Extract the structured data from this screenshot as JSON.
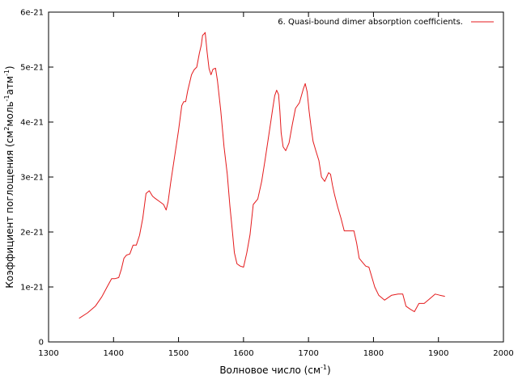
{
  "chart_data": {
    "type": "line",
    "title": "",
    "xlabel": {
      "main": "Волновое число (см",
      "sup": "-1",
      "end": ")"
    },
    "ylabel": {
      "p1": "Коэффициент поглощения (см",
      "s1": "2",
      "p2": "моль",
      "s2": "-1",
      "p3": "атм",
      "s3": "-1",
      "p4": ")"
    },
    "xlim": [
      1300,
      2000
    ],
    "ylim": [
      0,
      6e-21
    ],
    "xticks": [
      1300,
      1400,
      1500,
      1600,
      1700,
      1800,
      1900,
      2000
    ],
    "xtick_labels": [
      "1300",
      "1400",
      "1500",
      "1600",
      "1700",
      "1800",
      "1900",
      "2000"
    ],
    "yticks": [
      0,
      1e-21,
      2e-21,
      3e-21,
      4e-21,
      5e-21,
      6e-21
    ],
    "ytick_labels": [
      "0",
      "1e-21",
      "2e-21",
      "3e-21",
      "4e-21",
      "5e-21",
      "6e-21"
    ],
    "grid": false,
    "legend_position": "top-right",
    "series": [
      {
        "name": "6. Quasi-bound dimer absorption coefficients.",
        "color": "#e41a1c",
        "x": [
          1347,
          1360,
          1372,
          1382,
          1390,
          1397,
          1402,
          1408,
          1412,
          1416,
          1420,
          1425,
          1430,
          1435,
          1440,
          1445,
          1450,
          1455,
          1460,
          1463,
          1470,
          1477,
          1481,
          1484,
          1488,
          1493,
          1500,
          1505,
          1508,
          1511,
          1514,
          1520,
          1524,
          1528,
          1532,
          1535,
          1537,
          1539,
          1541,
          1544,
          1547,
          1550,
          1553,
          1557,
          1560,
          1565,
          1570,
          1575,
          1579,
          1583,
          1586,
          1590,
          1595,
          1600,
          1605,
          1610,
          1615,
          1622,
          1628,
          1633,
          1640,
          1645,
          1648,
          1651,
          1654,
          1656,
          1658,
          1661,
          1665,
          1670,
          1675,
          1680,
          1686,
          1692,
          1695,
          1698,
          1701,
          1704,
          1707,
          1712,
          1716,
          1720,
          1725,
          1728,
          1731,
          1734,
          1737,
          1740,
          1745,
          1750,
          1755,
          1760,
          1765,
          1770,
          1774,
          1778,
          1783,
          1788,
          1793,
          1797,
          1802,
          1808,
          1817,
          1828,
          1838,
          1845,
          1850,
          1856,
          1863,
          1870,
          1878,
          1886,
          1895,
          1902,
          1910
        ],
        "values": [
          4.3e-22,
          5.3e-22,
          6.5e-22,
          8.2e-22,
          1e-21,
          1.15e-21,
          1.15e-21,
          1.17e-21,
          1.32e-21,
          1.52e-21,
          1.58e-21,
          1.6e-21,
          1.76e-21,
          1.76e-21,
          1.94e-21,
          2.25e-21,
          2.7e-21,
          2.75e-21,
          2.65e-21,
          2.62e-21,
          2.56e-21,
          2.5e-21,
          2.4e-21,
          2.55e-21,
          2.9e-21,
          3.3e-21,
          3.85e-21,
          4.3e-21,
          4.37e-21,
          4.37e-21,
          4.56e-21,
          4.86e-21,
          4.95e-21,
          5e-21,
          5.25e-21,
          5.4e-21,
          5.58e-21,
          5.6e-21,
          5.63e-21,
          5.27e-21,
          4.97e-21,
          4.86e-21,
          4.96e-21,
          4.98e-21,
          4.75e-21,
          4.2e-21,
          3.55e-21,
          3.05e-21,
          2.48e-21,
          2e-21,
          1.62e-21,
          1.42e-21,
          1.38e-21,
          1.36e-21,
          1.62e-21,
          1.95e-21,
          2.5e-21,
          2.6e-21,
          2.92e-21,
          3.3e-21,
          3.85e-21,
          4.25e-21,
          4.48e-21,
          4.58e-21,
          4.5e-21,
          4.2e-21,
          3.8e-21,
          3.55e-21,
          3.48e-21,
          3.62e-21,
          3.95e-21,
          4.25e-21,
          4.35e-21,
          4.6e-21,
          4.7e-21,
          4.55e-21,
          4.2e-21,
          3.9e-21,
          3.65e-21,
          3.45e-21,
          3.3e-21,
          3e-21,
          2.92e-21,
          3e-21,
          3.08e-21,
          3.05e-21,
          2.85e-21,
          2.68e-21,
          2.45e-21,
          2.25e-21,
          2.02e-21,
          2.02e-21,
          2.02e-21,
          2.02e-21,
          1.8e-21,
          1.52e-21,
          1.45e-21,
          1.38e-21,
          1.36e-21,
          1.2e-21,
          1e-21,
          8.5e-22,
          7.6e-22,
          8.5e-22,
          8.7e-22,
          8.7e-22,
          6.5e-22,
          6e-22,
          5.5e-22,
          7e-22,
          7e-22,
          7.8e-22,
          8.7e-22,
          8.5e-22,
          8.3e-22
        ]
      }
    ]
  }
}
